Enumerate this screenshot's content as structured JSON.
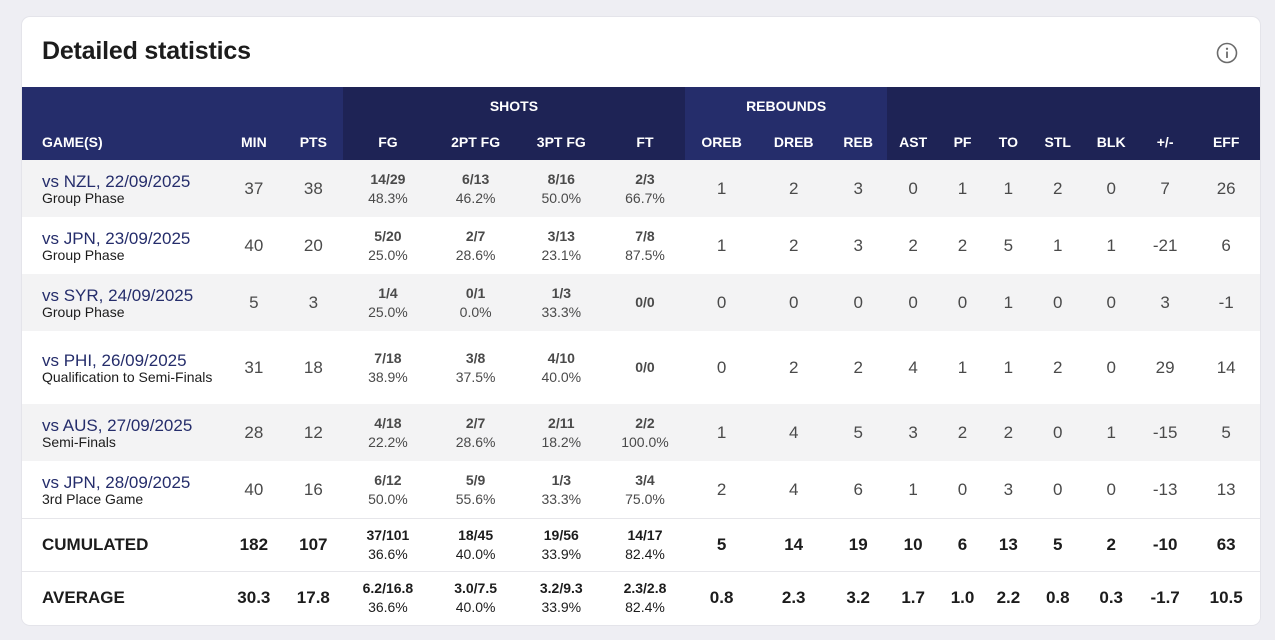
{
  "title": "Detailed statistics",
  "info_icon": "info-circle-icon",
  "groups": {
    "shots": "SHOTS",
    "rebounds": "REBOUNDS"
  },
  "columns": [
    "GAME(S)",
    "MIN",
    "PTS",
    "FG",
    "2PT FG",
    "3PT FG",
    "FT",
    "OREB",
    "DREB",
    "REB",
    "AST",
    "PF",
    "TO",
    "STL",
    "BLK",
    "+/-",
    "EFF"
  ],
  "games": [
    {
      "game": "vs NZL, 22/09/2025",
      "phase": "Group Phase",
      "min": "37",
      "pts": "38",
      "fg": "14/29",
      "fg_pct": "48.3%",
      "fg2": "6/13",
      "fg2_pct": "46.2%",
      "fg3": "8/16",
      "fg3_pct": "50.0%",
      "ft": "2/3",
      "ft_pct": "66.7%",
      "oreb": "1",
      "dreb": "2",
      "reb": "3",
      "ast": "0",
      "pf": "1",
      "to": "1",
      "stl": "2",
      "blk": "0",
      "pm": "7",
      "eff": "26"
    },
    {
      "game": "vs JPN, 23/09/2025",
      "phase": "Group Phase",
      "min": "40",
      "pts": "20",
      "fg": "5/20",
      "fg_pct": "25.0%",
      "fg2": "2/7",
      "fg2_pct": "28.6%",
      "fg3": "3/13",
      "fg3_pct": "23.1%",
      "ft": "7/8",
      "ft_pct": "87.5%",
      "oreb": "1",
      "dreb": "2",
      "reb": "3",
      "ast": "2",
      "pf": "2",
      "to": "5",
      "stl": "1",
      "blk": "1",
      "pm": "-21",
      "eff": "6"
    },
    {
      "game": "vs SYR, 24/09/2025",
      "phase": "Group Phase",
      "min": "5",
      "pts": "3",
      "fg": "1/4",
      "fg_pct": "25.0%",
      "fg2": "0/1",
      "fg2_pct": "0.0%",
      "fg3": "1/3",
      "fg3_pct": "33.3%",
      "ft": "0/0",
      "ft_pct": "",
      "oreb": "0",
      "dreb": "0",
      "reb": "0",
      "ast": "0",
      "pf": "0",
      "to": "1",
      "stl": "0",
      "blk": "0",
      "pm": "3",
      "eff": "-1"
    },
    {
      "game": "vs PHI, 26/09/2025",
      "phase": "Qualification to Semi-Finals",
      "min": "31",
      "pts": "18",
      "fg": "7/18",
      "fg_pct": "38.9%",
      "fg2": "3/8",
      "fg2_pct": "37.5%",
      "fg3": "4/10",
      "fg3_pct": "40.0%",
      "ft": "0/0",
      "ft_pct": "",
      "oreb": "0",
      "dreb": "2",
      "reb": "2",
      "ast": "4",
      "pf": "1",
      "to": "1",
      "stl": "2",
      "blk": "0",
      "pm": "29",
      "eff": "14"
    },
    {
      "game": "vs AUS, 27/09/2025",
      "phase": "Semi-Finals",
      "min": "28",
      "pts": "12",
      "fg": "4/18",
      "fg_pct": "22.2%",
      "fg2": "2/7",
      "fg2_pct": "28.6%",
      "fg3": "2/11",
      "fg3_pct": "18.2%",
      "ft": "2/2",
      "ft_pct": "100.0%",
      "oreb": "1",
      "dreb": "4",
      "reb": "5",
      "ast": "3",
      "pf": "2",
      "to": "2",
      "stl": "0",
      "blk": "1",
      "pm": "-15",
      "eff": "5"
    },
    {
      "game": "vs JPN, 28/09/2025",
      "phase": "3rd Place Game",
      "min": "40",
      "pts": "16",
      "fg": "6/12",
      "fg_pct": "50.0%",
      "fg2": "5/9",
      "fg2_pct": "55.6%",
      "fg3": "1/3",
      "fg3_pct": "33.3%",
      "ft": "3/4",
      "ft_pct": "75.0%",
      "oreb": "2",
      "dreb": "4",
      "reb": "6",
      "ast": "1",
      "pf": "0",
      "to": "3",
      "stl": "0",
      "blk": "0",
      "pm": "-13",
      "eff": "13"
    }
  ],
  "cumulated": {
    "label": "CUMULATED",
    "min": "182",
    "pts": "107",
    "fg": "37/101",
    "fg_pct": "36.6%",
    "fg2": "18/45",
    "fg2_pct": "40.0%",
    "fg3": "19/56",
    "fg3_pct": "33.9%",
    "ft": "14/17",
    "ft_pct": "82.4%",
    "oreb": "5",
    "dreb": "14",
    "reb": "19",
    "ast": "10",
    "pf": "6",
    "to": "13",
    "stl": "5",
    "blk": "2",
    "pm": "-10",
    "eff": "63"
  },
  "average": {
    "label": "AVERAGE",
    "min": "30.3",
    "pts": "17.8",
    "fg": "6.2/16.8",
    "fg_pct": "36.6%",
    "fg2": "3.0/7.5",
    "fg2_pct": "40.0%",
    "fg3": "3.2/9.3",
    "fg3_pct": "33.9%",
    "ft": "2.3/2.8",
    "ft_pct": "82.4%",
    "oreb": "0.8",
    "dreb": "2.3",
    "reb": "3.2",
    "ast": "1.7",
    "pf": "1.0",
    "to": "2.2",
    "stl": "0.8",
    "blk": "0.3",
    "pm": "-1.7",
    "eff": "10.5"
  },
  "colors": {
    "header": "#252d6b",
    "header_dark": "#1e2355",
    "link": "#252d6b",
    "row_alt": "#f3f3f4"
  }
}
